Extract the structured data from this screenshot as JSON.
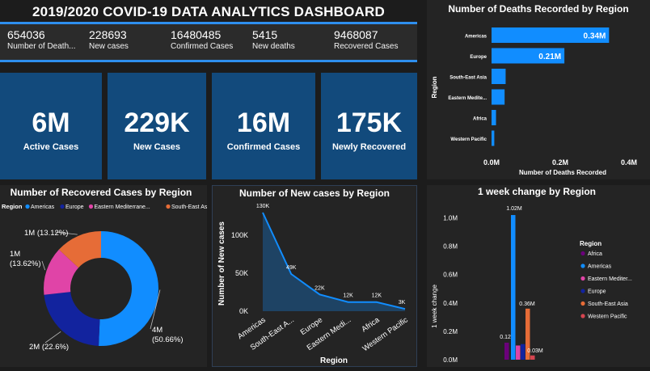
{
  "dashboard_title": "2019/2020 COVID-19 DATA ANALYTICS DASHBOARD",
  "stats": [
    {
      "value": "654036",
      "label": "Number of Death..."
    },
    {
      "value": "228693",
      "label": "New cases"
    },
    {
      "value": "16480485",
      "label": "Confirmed Cases"
    },
    {
      "value": "5415",
      "label": "New deaths"
    },
    {
      "value": "9468087",
      "label": "Recovered Cases"
    }
  ],
  "cards": [
    {
      "value": "6M",
      "label": "Active Cases"
    },
    {
      "value": "229K",
      "label": "New Cases"
    },
    {
      "value": "16M",
      "label": "Confirmed Cases"
    },
    {
      "value": "175K",
      "label": "Newly Recovered"
    }
  ],
  "colors": {
    "blue": "#118dff",
    "darkblue": "#12239e",
    "pink": "#e044a7",
    "orange": "#e66c37",
    "purple": "#6b007b",
    "red": "#d64550"
  },
  "chart_data": [
    {
      "type": "bar",
      "orientation": "horizontal",
      "title": "Number of Deaths Recorded by Region",
      "xlabel": "Number of Deaths Recorded",
      "ylabel": "Region",
      "categories": [
        "Americas",
        "Europe",
        "South-East Asia",
        "Eastern Medite...",
        "Africa",
        "Western Pacific"
      ],
      "values": [
        0.342,
        0.212,
        0.041,
        0.038,
        0.013,
        0.008
      ],
      "data_labels": [
        "0.34M",
        "0.21M",
        "",
        "",
        "",
        ""
      ],
      "xlim": [
        0,
        0.4
      ],
      "xticks": [
        "0.0M",
        "0.2M",
        "0.4M"
      ],
      "color": "#118dff"
    },
    {
      "type": "pie",
      "variant": "donut",
      "title": "Number of Recovered Cases by Region",
      "legend_title": "Region",
      "legend_position": "top",
      "legend": [
        {
          "name": "Americas",
          "color": "#118dff"
        },
        {
          "name": "Europe",
          "color": "#12239e"
        },
        {
          "name": "Eastern Mediterrane...",
          "color": "#e044a7"
        },
        {
          "name": "South-East Asia",
          "color": "#e66c37"
        }
      ],
      "slices": [
        {
          "name": "Americas",
          "percent": 50.66,
          "color": "#118dff",
          "label_value": "4M",
          "label_pct": "(50.66%)"
        },
        {
          "name": "Europe",
          "percent": 22.6,
          "color": "#12239e",
          "label_value": "2M (22.6%)",
          "label_pct": ""
        },
        {
          "name": "Eastern Mediterranean",
          "percent": 13.62,
          "color": "#e044a7",
          "label_value": "1M",
          "label_pct": "(13.62%)"
        },
        {
          "name": "South-East Asia",
          "percent": 13.12,
          "color": "#e66c37",
          "label_value": "1M (13.12%)",
          "label_pct": ""
        }
      ]
    },
    {
      "type": "area",
      "title": "Number of New cases by Region",
      "xlabel": "Region",
      "ylabel": "Number of New cases",
      "categories": [
        "Americas",
        "South-East A...",
        "Europe",
        "Eastern Medi...",
        "Africa",
        "Western Pacific"
      ],
      "values": [
        130000,
        49000,
        22000,
        12000,
        12000,
        3000
      ],
      "data_labels": [
        "130K",
        "49K",
        "22K",
        "12K",
        "12K",
        "3K"
      ],
      "ylim": [
        0,
        130000
      ],
      "yticks": [
        "0K",
        "50K",
        "100K"
      ],
      "ytick_values": [
        0,
        50000,
        100000
      ],
      "color": "#118dff"
    },
    {
      "type": "bar",
      "title": "1 week change by Region",
      "ylabel": "1 week change",
      "legend_title": "Region",
      "legend_position": "right",
      "series": [
        {
          "name": "Africa",
          "value": 0.12,
          "color": "#6b007b",
          "label": "0.12M"
        },
        {
          "name": "Americas",
          "value": 1.02,
          "color": "#118dff",
          "label": "1.02M"
        },
        {
          "name": "Eastern Mediter...",
          "value": 0.1,
          "color": "#e044a7",
          "label": ""
        },
        {
          "name": "Europe",
          "value": 0.11,
          "color": "#12239e",
          "label": ""
        },
        {
          "name": "South-East Asia",
          "value": 0.36,
          "color": "#e66c37",
          "label": "0.36M"
        },
        {
          "name": "Western Pacific",
          "value": 0.03,
          "color": "#d64550",
          "label": "0.03M"
        }
      ],
      "ylim": [
        0,
        1.1
      ],
      "yticks": [
        "0.0M",
        "0.2M",
        "0.4M",
        "0.6M",
        "0.8M",
        "1.0M"
      ],
      "ytick_values": [
        0,
        0.2,
        0.4,
        0.6,
        0.8,
        1.0
      ]
    }
  ]
}
